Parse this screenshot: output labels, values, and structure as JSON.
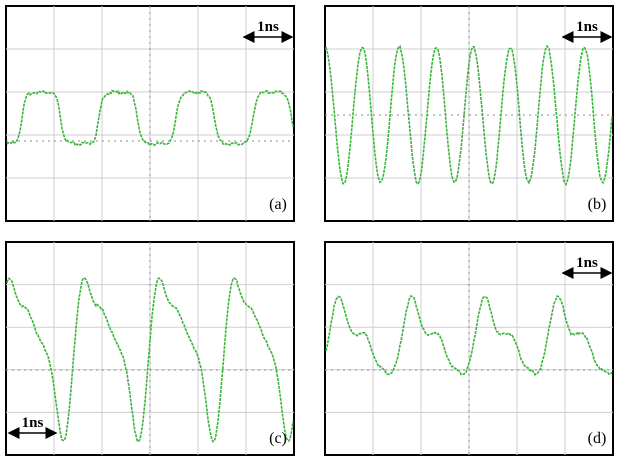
{
  "panels": [
    {
      "label": "(a)",
      "scale": "1ns"
    },
    {
      "label": "(b)",
      "scale": "1ns"
    },
    {
      "label": "(c)",
      "scale": "1ns"
    },
    {
      "label": "(d)",
      "scale": "1ns"
    }
  ]
}
